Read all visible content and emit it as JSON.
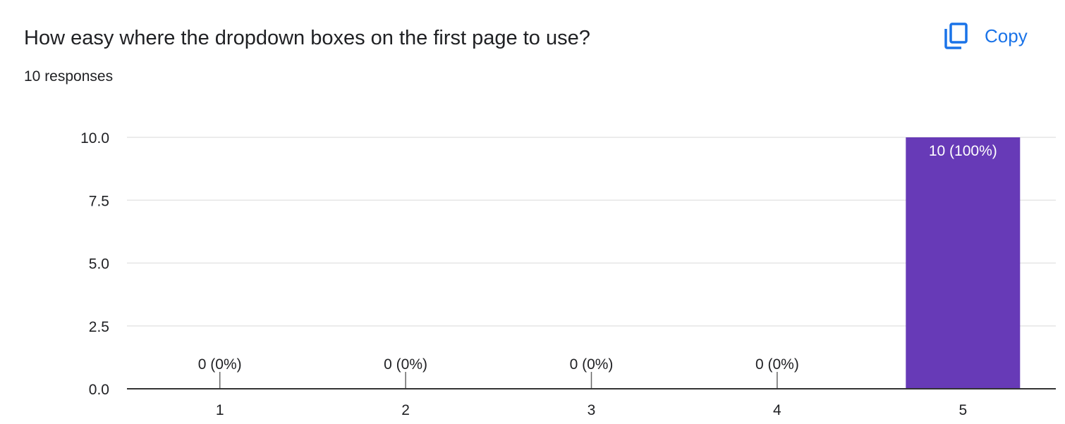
{
  "header": {
    "question": "How easy where the dropdown boxes on the first page to use?",
    "responses": "10 responses",
    "copy_label": "Copy",
    "copy_icon": "copy-icon"
  },
  "colors": {
    "bar": "#673ab7",
    "grid": "#e6e6e6",
    "axis": "#333333",
    "text": "#202124",
    "accent": "#1a73e8"
  },
  "chart_data": {
    "type": "bar",
    "categories": [
      "1",
      "2",
      "3",
      "4",
      "5"
    ],
    "values": [
      0,
      0,
      0,
      0,
      10
    ],
    "data_labels": [
      "0 (0%)",
      "0 (0%)",
      "0 (0%)",
      "0 (0%)",
      "10 (100%)"
    ],
    "y_ticks": [
      "0.0",
      "2.5",
      "5.0",
      "7.5",
      "10.0"
    ],
    "ylim": [
      0,
      10
    ],
    "grid": true,
    "legend": "none"
  }
}
